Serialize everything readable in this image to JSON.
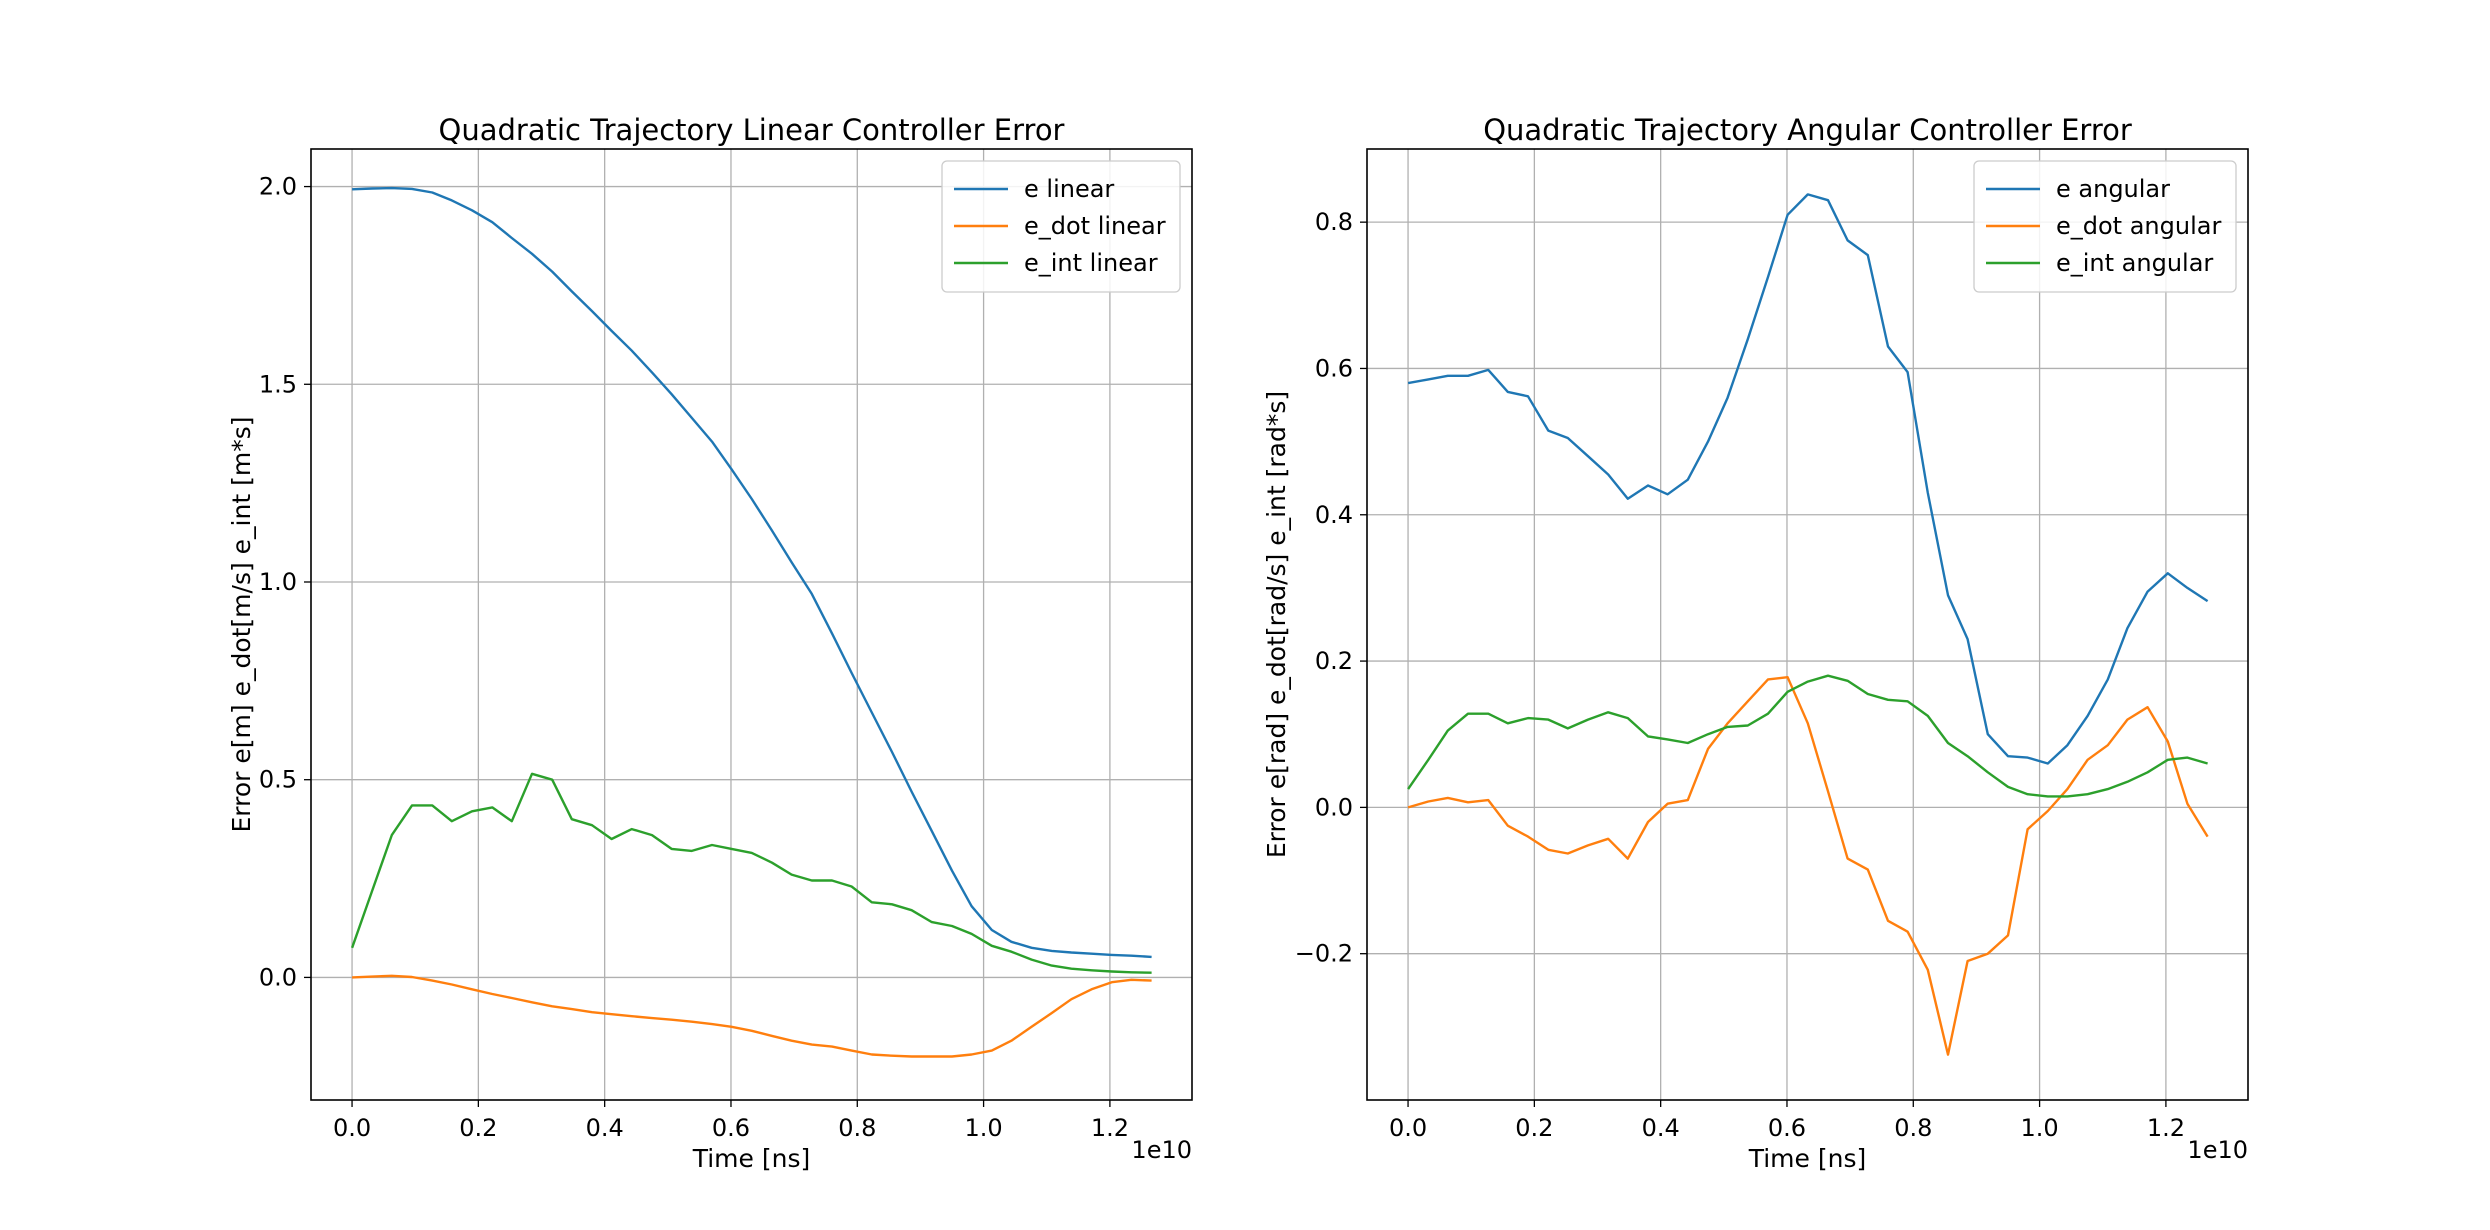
{
  "chart_data": [
    {
      "type": "line",
      "title": "Quadratic Trajectory Linear Controller Error",
      "xlabel": "Time [ns]",
      "ylabel": "Error e[m] e_dot[m/s] e_int [m*s]",
      "x_offset_label": "1e10",
      "xlim": [
        -0.065,
        1.33
      ],
      "ylim": [
        -0.31,
        2.095
      ],
      "xticks": [
        0.0,
        0.2,
        0.4,
        0.6,
        0.8,
        1.0,
        1.2
      ],
      "xtick_labels": [
        "0.0",
        "0.2",
        "0.4",
        "0.6",
        "0.8",
        "1.0",
        "1.2"
      ],
      "yticks": [
        0.0,
        0.5,
        1.0,
        1.5,
        2.0
      ],
      "ytick_labels": [
        "0.0",
        "0.5",
        "1.0",
        "1.5",
        "2.0"
      ],
      "grid": true,
      "legend_position": "top-right",
      "x": [
        0.0,
        0.032,
        0.063,
        0.095,
        0.127,
        0.158,
        0.19,
        0.222,
        0.253,
        0.285,
        0.317,
        0.348,
        0.38,
        0.411,
        0.443,
        0.475,
        0.506,
        0.538,
        0.57,
        0.601,
        0.633,
        0.665,
        0.696,
        0.728,
        0.76,
        0.791,
        0.823,
        0.855,
        0.886,
        0.918,
        0.95,
        0.981,
        1.013,
        1.044,
        1.076,
        1.108,
        1.139,
        1.171,
        1.203,
        1.234,
        1.266
      ],
      "series": [
        {
          "name": "e linear",
          "color": "#1f77b4",
          "values": [
            1.993,
            1.995,
            1.996,
            1.994,
            1.985,
            1.965,
            1.94,
            1.91,
            1.87,
            1.83,
            1.785,
            1.735,
            1.685,
            1.635,
            1.585,
            1.53,
            1.475,
            1.415,
            1.355,
            1.285,
            1.21,
            1.13,
            1.05,
            0.97,
            0.87,
            0.77,
            0.67,
            0.57,
            0.47,
            0.37,
            0.27,
            0.18,
            0.12,
            0.09,
            0.075,
            0.067,
            0.063,
            0.06,
            0.057,
            0.055,
            0.052
          ]
        },
        {
          "name": "e_dot linear",
          "color": "#ff7f0e",
          "values": [
            0.0,
            0.002,
            0.004,
            0.001,
            -0.008,
            -0.018,
            -0.03,
            -0.042,
            -0.052,
            -0.063,
            -0.073,
            -0.08,
            -0.088,
            -0.093,
            -0.098,
            -0.103,
            -0.107,
            -0.112,
            -0.118,
            -0.125,
            -0.135,
            -0.148,
            -0.16,
            -0.17,
            -0.175,
            -0.185,
            -0.195,
            -0.198,
            -0.2,
            -0.2,
            -0.2,
            -0.195,
            -0.185,
            -0.16,
            -0.125,
            -0.09,
            -0.055,
            -0.03,
            -0.012,
            -0.006,
            -0.008
          ]
        },
        {
          "name": "e_int linear",
          "color": "#2ca02c",
          "values": [
            0.075,
            0.22,
            0.36,
            0.435,
            0.435,
            0.395,
            0.42,
            0.43,
            0.395,
            0.515,
            0.5,
            0.4,
            0.385,
            0.35,
            0.375,
            0.36,
            0.325,
            0.32,
            0.335,
            0.325,
            0.315,
            0.29,
            0.26,
            0.245,
            0.245,
            0.23,
            0.19,
            0.185,
            0.17,
            0.14,
            0.13,
            0.11,
            0.08,
            0.065,
            0.045,
            0.03,
            0.022,
            0.018,
            0.015,
            0.013,
            0.012
          ]
        }
      ]
    },
    {
      "type": "line",
      "title": "Quadratic Trajectory Angular Controller Error",
      "xlabel": "Time [ns]",
      "ylabel": "Error e[rad] e_dot[rad/s] e_int [rad*s]",
      "x_offset_label": "1e10",
      "xlim": [
        -0.065,
        1.33
      ],
      "ylim": [
        -0.4,
        0.9
      ],
      "xticks": [
        0.0,
        0.2,
        0.4,
        0.6,
        0.8,
        1.0,
        1.2
      ],
      "xtick_labels": [
        "0.0",
        "0.2",
        "0.4",
        "0.6",
        "0.8",
        "1.0",
        "1.2"
      ],
      "yticks": [
        -0.2,
        0.0,
        0.2,
        0.4,
        0.6,
        0.8
      ],
      "ytick_labels": [
        "−0.2",
        "0.0",
        "0.2",
        "0.4",
        "0.6",
        "0.8"
      ],
      "grid": true,
      "legend_position": "top-right",
      "x": [
        0.0,
        0.032,
        0.063,
        0.095,
        0.127,
        0.158,
        0.19,
        0.222,
        0.253,
        0.285,
        0.317,
        0.348,
        0.38,
        0.411,
        0.443,
        0.475,
        0.506,
        0.538,
        0.57,
        0.601,
        0.633,
        0.665,
        0.696,
        0.728,
        0.76,
        0.791,
        0.823,
        0.855,
        0.886,
        0.918,
        0.95,
        0.981,
        1.013,
        1.044,
        1.076,
        1.108,
        1.139,
        1.171,
        1.203,
        1.234,
        1.266
      ],
      "series": [
        {
          "name": "e angular",
          "color": "#1f77b4",
          "values": [
            0.58,
            0.585,
            0.59,
            0.59,
            0.598,
            0.568,
            0.562,
            0.515,
            0.505,
            0.48,
            0.455,
            0.422,
            0.44,
            0.428,
            0.448,
            0.5,
            0.56,
            0.64,
            0.725,
            0.81,
            0.838,
            0.83,
            0.775,
            0.755,
            0.63,
            0.595,
            0.43,
            0.29,
            0.23,
            0.1,
            0.07,
            0.068,
            0.06,
            0.085,
            0.125,
            0.175,
            0.245,
            0.295,
            0.32,
            0.3,
            0.282
          ]
        },
        {
          "name": "e_dot angular",
          "color": "#ff7f0e",
          "values": [
            0.0,
            0.008,
            0.013,
            0.007,
            0.01,
            -0.025,
            -0.04,
            -0.058,
            -0.063,
            -0.052,
            -0.043,
            -0.07,
            -0.02,
            0.005,
            0.01,
            0.08,
            0.115,
            0.145,
            0.175,
            0.178,
            0.115,
            0.022,
            -0.07,
            -0.085,
            -0.155,
            -0.17,
            -0.222,
            -0.338,
            -0.21,
            -0.2,
            -0.175,
            -0.03,
            -0.005,
            0.025,
            0.065,
            0.085,
            0.12,
            0.137,
            0.09,
            0.005,
            -0.04
          ]
        },
        {
          "name": "e_int angular",
          "color": "#2ca02c",
          "values": [
            0.025,
            0.065,
            0.105,
            0.128,
            0.128,
            0.115,
            0.122,
            0.12,
            0.108,
            0.12,
            0.13,
            0.122,
            0.097,
            0.093,
            0.088,
            0.1,
            0.11,
            0.112,
            0.128,
            0.158,
            0.172,
            0.18,
            0.173,
            0.155,
            0.147,
            0.145,
            0.125,
            0.088,
            0.07,
            0.048,
            0.028,
            0.018,
            0.015,
            0.015,
            0.018,
            0.025,
            0.035,
            0.048,
            0.065,
            0.068,
            0.06
          ]
        }
      ]
    }
  ]
}
